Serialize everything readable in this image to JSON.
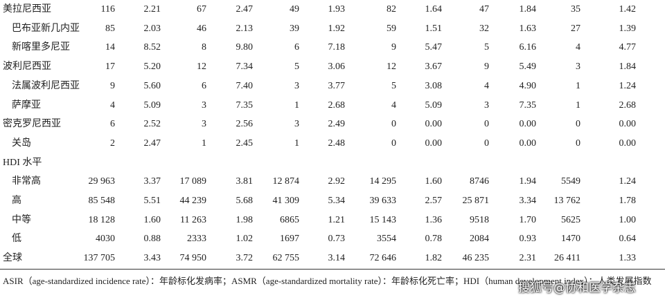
{
  "table": {
    "rows": [
      [
        "美拉尼西亚",
        "116",
        "2.21",
        "67",
        "2.47",
        "49",
        "1.93",
        "82",
        "1.64",
        "47",
        "1.84",
        "35",
        "1.42"
      ],
      [
        "巴布亚新几内亚",
        "85",
        "2.03",
        "46",
        "2.13",
        "39",
        "1.92",
        "59",
        "1.51",
        "32",
        "1.63",
        "27",
        "1.39"
      ],
      [
        "新喀里多尼亚",
        "14",
        "8.52",
        "8",
        "9.80",
        "6",
        "7.18",
        "9",
        "5.47",
        "5",
        "6.16",
        "4",
        "4.77"
      ],
      [
        "波利尼西亚",
        "17",
        "5.20",
        "12",
        "7.34",
        "5",
        "3.06",
        "12",
        "3.67",
        "9",
        "5.49",
        "3",
        "1.84"
      ],
      [
        "法属波利尼西亚",
        "9",
        "5.60",
        "6",
        "7.40",
        "3",
        "3.77",
        "5",
        "3.08",
        "4",
        "4.90",
        "1",
        "1.24"
      ],
      [
        "萨摩亚",
        "4",
        "5.09",
        "3",
        "7.35",
        "1",
        "2.68",
        "4",
        "5.09",
        "3",
        "7.35",
        "1",
        "2.68"
      ],
      [
        "密克罗尼西亚",
        "6",
        "2.52",
        "3",
        "2.56",
        "3",
        "2.49",
        "0",
        "0.00",
        "0",
        "0.00",
        "0",
        "0.00"
      ],
      [
        "关岛",
        "2",
        "2.47",
        "1",
        "2.45",
        "1",
        "2.48",
        "0",
        "0.00",
        "0",
        "0.00",
        "0",
        "0.00"
      ],
      [
        "HDI 水平"
      ],
      [
        "非常高",
        "29 963",
        "3.37",
        "17 089",
        "3.81",
        "12 874",
        "2.92",
        "14 295",
        "1.60",
        "8746",
        "1.94",
        "5549",
        "1.24"
      ],
      [
        "高",
        "85 548",
        "5.51",
        "44 239",
        "5.68",
        "41 309",
        "5.34",
        "39 633",
        "2.57",
        "25 871",
        "3.34",
        "13 762",
        "1.78"
      ],
      [
        "中等",
        "18 128",
        "1.60",
        "11 263",
        "1.98",
        "6865",
        "1.21",
        "15 143",
        "1.36",
        "9518",
        "1.70",
        "5625",
        "1.00"
      ],
      [
        "低",
        "4030",
        "0.88",
        "2333",
        "1.02",
        "1697",
        "0.73",
        "3554",
        "0.78",
        "2084",
        "0.93",
        "1470",
        "0.64"
      ],
      [
        "全球",
        "137 705",
        "3.43",
        "74 950",
        "3.72",
        "62 755",
        "3.14",
        "72 646",
        "1.82",
        "46 235",
        "2.31",
        "26 411",
        "1.33"
      ]
    ]
  },
  "footnote": "ASIR（age-standardized incidence rate）：年龄标化发病率；ASMR（age-standardized mortality rate）：年龄标化死亡率；HDI（human development index）：人类发展指数",
  "watermark": "搜狐号@协和医学杂志"
}
